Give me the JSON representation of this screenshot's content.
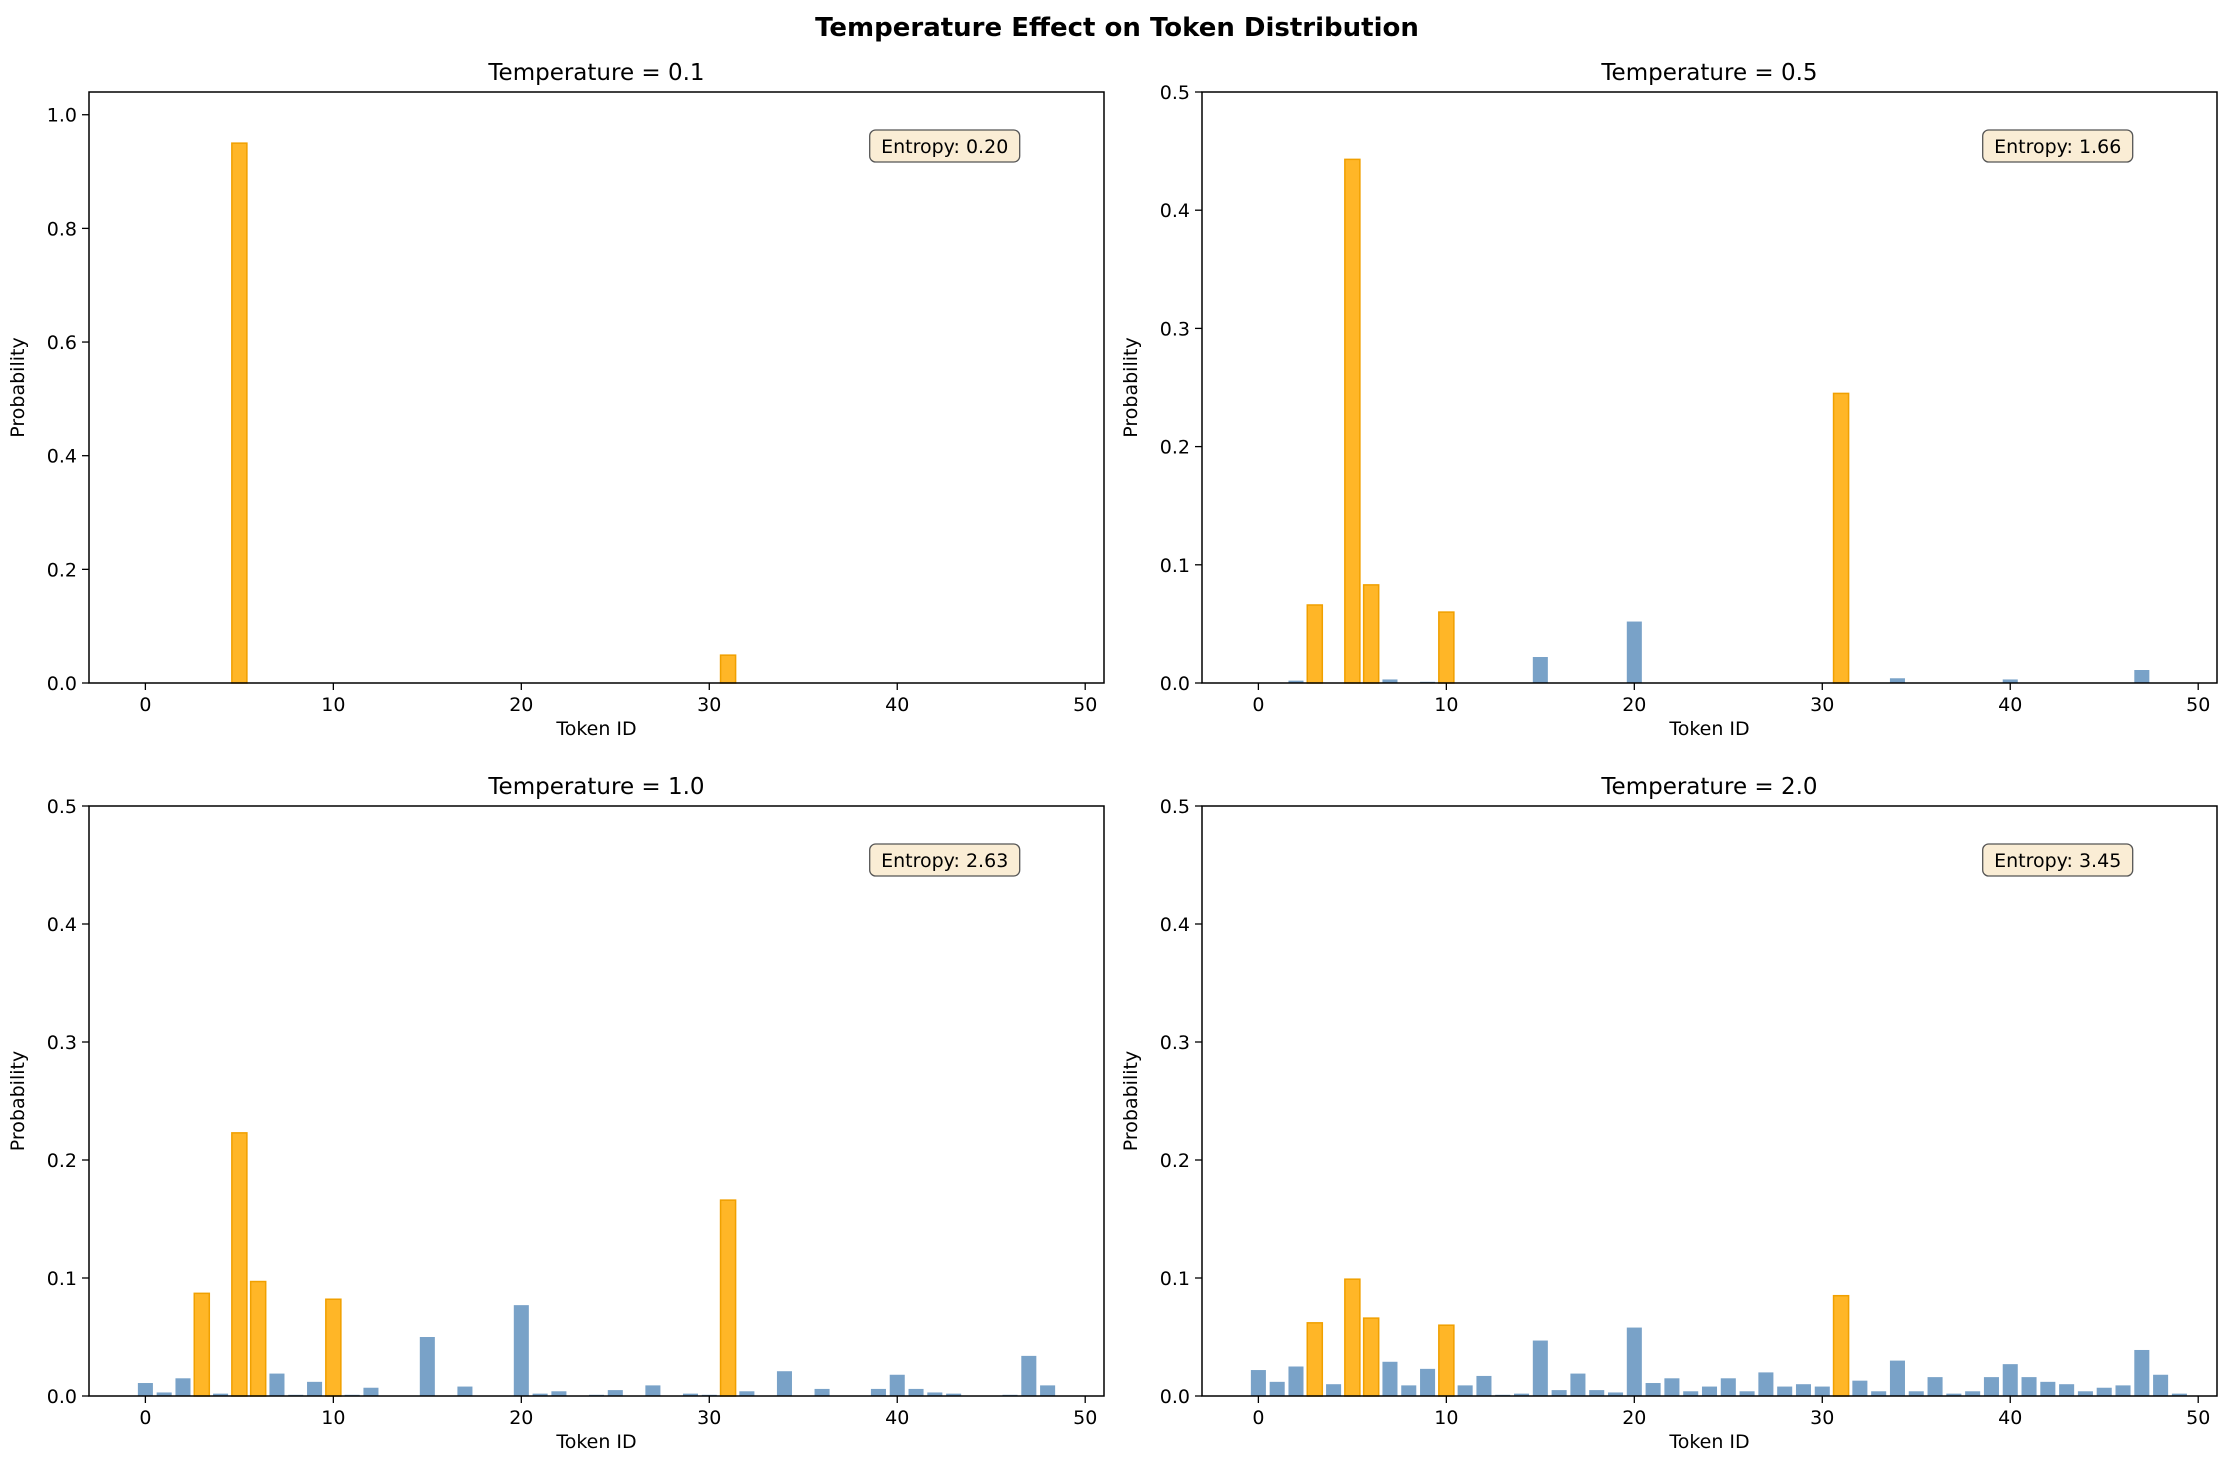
{
  "figure": {
    "title": "Temperature Effect on Token Distribution"
  },
  "colors": {
    "highlight": "#FFB627",
    "highlight_edge": "#F0A000",
    "base": "#79A2C8",
    "entropy_box_fill": "#F5DEB3",
    "entropy_box_edge": "#555555"
  },
  "chart_data": [
    {
      "type": "bar",
      "title": "Temperature = 0.1",
      "xlabel": "Token ID",
      "ylabel": "Probability",
      "xlim": [
        -3,
        51
      ],
      "ylim": [
        0,
        1.04
      ],
      "xticks": [
        0,
        10,
        20,
        30,
        40,
        50
      ],
      "yticks": [
        0.0,
        0.2,
        0.4,
        0.6,
        0.8,
        1.0
      ],
      "annotation": "Entropy: 0.20",
      "highlighted_tokens": [
        3,
        5,
        6,
        10,
        31
      ],
      "bars": [
        {
          "x": 5,
          "y": 0.95
        },
        {
          "x": 31,
          "y": 0.049
        }
      ]
    },
    {
      "type": "bar",
      "title": "Temperature = 0.5",
      "xlabel": "Token ID",
      "ylabel": "Probability",
      "xlim": [
        -3,
        51
      ],
      "ylim": [
        0,
        0.5
      ],
      "xticks": [
        0,
        10,
        20,
        30,
        40,
        50
      ],
      "yticks": [
        0.0,
        0.1,
        0.2,
        0.3,
        0.4,
        0.5
      ],
      "annotation": "Entropy: 1.66",
      "highlighted_tokens": [
        3,
        5,
        6,
        10,
        31
      ],
      "bars": [
        {
          "x": 2,
          "y": 0.002
        },
        {
          "x": 3,
          "y": 0.066
        },
        {
          "x": 5,
          "y": 0.443
        },
        {
          "x": 6,
          "y": 0.083
        },
        {
          "x": 7,
          "y": 0.003
        },
        {
          "x": 9,
          "y": 0.001
        },
        {
          "x": 10,
          "y": 0.06
        },
        {
          "x": 15,
          "y": 0.022
        },
        {
          "x": 20,
          "y": 0.052
        },
        {
          "x": 31,
          "y": 0.245
        },
        {
          "x": 34,
          "y": 0.004
        },
        {
          "x": 40,
          "y": 0.003
        },
        {
          "x": 47,
          "y": 0.011
        }
      ]
    },
    {
      "type": "bar",
      "title": "Temperature = 1.0",
      "xlabel": "Token ID",
      "ylabel": "Probability",
      "xlim": [
        -3,
        51
      ],
      "ylim": [
        0,
        0.5
      ],
      "xticks": [
        0,
        10,
        20,
        30,
        40,
        50
      ],
      "yticks": [
        0.0,
        0.1,
        0.2,
        0.3,
        0.4,
        0.5
      ],
      "annotation": "Entropy: 2.63",
      "highlighted_tokens": [
        3,
        5,
        6,
        10,
        31
      ],
      "bars": [
        {
          "x": 0,
          "y": 0.011
        },
        {
          "x": 1,
          "y": 0.003
        },
        {
          "x": 2,
          "y": 0.015
        },
        {
          "x": 3,
          "y": 0.087
        },
        {
          "x": 4,
          "y": 0.002
        },
        {
          "x": 5,
          "y": 0.223
        },
        {
          "x": 6,
          "y": 0.097
        },
        {
          "x": 7,
          "y": 0.019
        },
        {
          "x": 8,
          "y": 0.001
        },
        {
          "x": 9,
          "y": 0.012
        },
        {
          "x": 10,
          "y": 0.082
        },
        {
          "x": 11,
          "y": 0.001
        },
        {
          "x": 12,
          "y": 0.007
        },
        {
          "x": 15,
          "y": 0.05
        },
        {
          "x": 17,
          "y": 0.008
        },
        {
          "x": 20,
          "y": 0.077
        },
        {
          "x": 21,
          "y": 0.002
        },
        {
          "x": 22,
          "y": 0.004
        },
        {
          "x": 24,
          "y": 0.001
        },
        {
          "x": 25,
          "y": 0.005
        },
        {
          "x": 27,
          "y": 0.009
        },
        {
          "x": 29,
          "y": 0.002
        },
        {
          "x": 30,
          "y": 0.001
        },
        {
          "x": 31,
          "y": 0.166
        },
        {
          "x": 32,
          "y": 0.004
        },
        {
          "x": 34,
          "y": 0.021
        },
        {
          "x": 36,
          "y": 0.006
        },
        {
          "x": 39,
          "y": 0.006
        },
        {
          "x": 40,
          "y": 0.018
        },
        {
          "x": 41,
          "y": 0.006
        },
        {
          "x": 42,
          "y": 0.003
        },
        {
          "x": 43,
          "y": 0.002
        },
        {
          "x": 46,
          "y": 0.001
        },
        {
          "x": 47,
          "y": 0.034
        },
        {
          "x": 48,
          "y": 0.009
        }
      ]
    },
    {
      "type": "bar",
      "title": "Temperature = 2.0",
      "xlabel": "Token ID",
      "ylabel": "Probability",
      "xlim": [
        -3,
        51
      ],
      "ylim": [
        0,
        0.5
      ],
      "xticks": [
        0,
        10,
        20,
        30,
        40,
        50
      ],
      "yticks": [
        0.0,
        0.1,
        0.2,
        0.3,
        0.4,
        0.5
      ],
      "annotation": "Entropy: 3.45",
      "highlighted_tokens": [
        3,
        5,
        6,
        10,
        31
      ],
      "bars": [
        {
          "x": 0,
          "y": 0.022
        },
        {
          "x": 1,
          "y": 0.012
        },
        {
          "x": 2,
          "y": 0.025
        },
        {
          "x": 3,
          "y": 0.062
        },
        {
          "x": 4,
          "y": 0.01
        },
        {
          "x": 5,
          "y": 0.099
        },
        {
          "x": 6,
          "y": 0.066
        },
        {
          "x": 7,
          "y": 0.029
        },
        {
          "x": 8,
          "y": 0.009
        },
        {
          "x": 9,
          "y": 0.023
        },
        {
          "x": 10,
          "y": 0.06
        },
        {
          "x": 11,
          "y": 0.009
        },
        {
          "x": 12,
          "y": 0.017
        },
        {
          "x": 13,
          "y": 0.001
        },
        {
          "x": 14,
          "y": 0.002
        },
        {
          "x": 15,
          "y": 0.047
        },
        {
          "x": 16,
          "y": 0.005
        },
        {
          "x": 17,
          "y": 0.019
        },
        {
          "x": 18,
          "y": 0.005
        },
        {
          "x": 19,
          "y": 0.003
        },
        {
          "x": 20,
          "y": 0.058
        },
        {
          "x": 21,
          "y": 0.011
        },
        {
          "x": 22,
          "y": 0.015
        },
        {
          "x": 23,
          "y": 0.004
        },
        {
          "x": 24,
          "y": 0.008
        },
        {
          "x": 25,
          "y": 0.015
        },
        {
          "x": 26,
          "y": 0.004
        },
        {
          "x": 27,
          "y": 0.02
        },
        {
          "x": 28,
          "y": 0.008
        },
        {
          "x": 29,
          "y": 0.01
        },
        {
          "x": 30,
          "y": 0.008
        },
        {
          "x": 31,
          "y": 0.085
        },
        {
          "x": 32,
          "y": 0.013
        },
        {
          "x": 33,
          "y": 0.004
        },
        {
          "x": 34,
          "y": 0.03
        },
        {
          "x": 35,
          "y": 0.004
        },
        {
          "x": 36,
          "y": 0.016
        },
        {
          "x": 37,
          "y": 0.002
        },
        {
          "x": 38,
          "y": 0.004
        },
        {
          "x": 39,
          "y": 0.016
        },
        {
          "x": 40,
          "y": 0.027
        },
        {
          "x": 41,
          "y": 0.016
        },
        {
          "x": 42,
          "y": 0.012
        },
        {
          "x": 43,
          "y": 0.01
        },
        {
          "x": 44,
          "y": 0.004
        },
        {
          "x": 45,
          "y": 0.007
        },
        {
          "x": 46,
          "y": 0.009
        },
        {
          "x": 47,
          "y": 0.039
        },
        {
          "x": 48,
          "y": 0.018
        },
        {
          "x": 49,
          "y": 0.002
        }
      ]
    }
  ]
}
